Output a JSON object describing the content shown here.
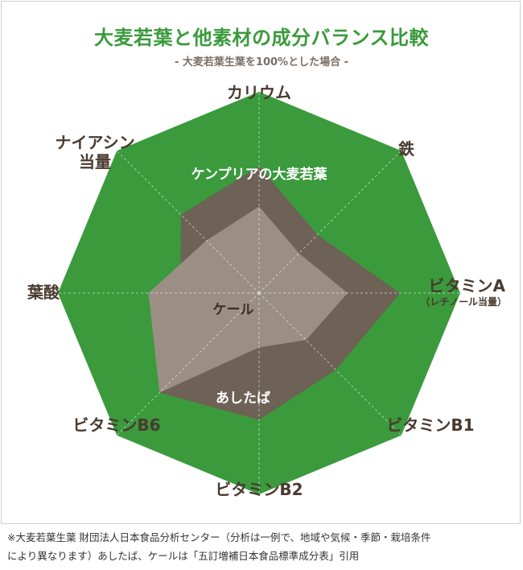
{
  "header": {
    "title": "大麦若葉と他素材の成分バランス比較",
    "subtitle": "- 大麦若葉生葉を100%とした場合 -"
  },
  "colors": {
    "title_green": "#3a9a3c",
    "octagon_fill": "#3a9a3c",
    "outer_series_fill": "#6e6155",
    "inner_series_fill": "#9b8f85",
    "axis_label": "#4a3a30"
  },
  "chart_data": {
    "type": "radar",
    "title": "大麦若葉と他素材の成分バランス比較",
    "subtitle": "- 大麦若葉生葉を100%とした場合 -",
    "axes": [
      {
        "label": "カリウム",
        "sub": ""
      },
      {
        "label": "鉄",
        "sub": ""
      },
      {
        "label": "ビタミンA",
        "sub": "（レチノール当量）"
      },
      {
        "label": "ビタミンB1",
        "sub": ""
      },
      {
        "label": "ビタミンB2",
        "sub": ""
      },
      {
        "label": "ビタミンB6",
        "sub": ""
      },
      {
        "label": "葉酸",
        "sub": ""
      },
      {
        "label": "ナイアシン",
        "sub": "当量"
      }
    ],
    "range": [
      0,
      100
    ],
    "grid": "dashed-spokes",
    "series": [
      {
        "name": "ケンプリアの大麦若葉",
        "values": [
          100,
          100,
          100,
          100,
          100,
          100,
          100,
          100
        ],
        "fill": "#3a9a3c",
        "label_color": "#ffffff"
      },
      {
        "name": "あしたば",
        "values": [
          63,
          41,
          70,
          54,
          63,
          70,
          39,
          55
        ],
        "fill": "#6e6155",
        "label_color": "#ffffff"
      },
      {
        "name": "ケール",
        "values": [
          43,
          28,
          44,
          33,
          27,
          70,
          55,
          37
        ],
        "fill": "#9b8f85",
        "label_color": "#3a2e26"
      }
    ]
  },
  "footnote": {
    "line1": "※大麦若葉生葉 財団法人日本食品分析センター（分析は一例で、地域や気候・季節・栽培条件",
    "line2": "により異なります）あしたば、ケールは「五訂増補日本食品標準成分表」引用"
  }
}
